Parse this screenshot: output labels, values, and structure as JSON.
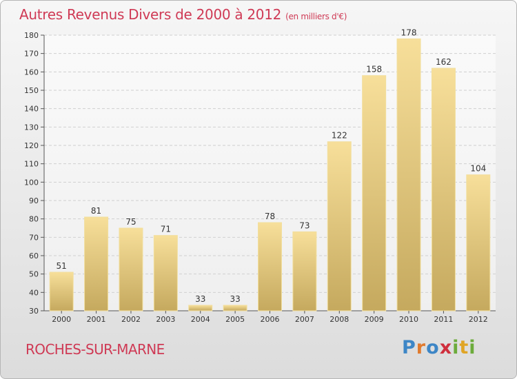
{
  "header": {
    "title": "Autres Revenus Divers de 2000 à 2012",
    "unit": "(en milliers d'€)"
  },
  "footer": {
    "place": "ROCHES-SUR-MARNE",
    "logo_letters": [
      {
        "char": "P",
        "color": "#3d86c6"
      },
      {
        "char": "r",
        "color": "#e07a2e"
      },
      {
        "char": "o",
        "color": "#3d86c6"
      },
      {
        "char": "x",
        "color": "#cf2f3d"
      },
      {
        "char": "i",
        "color": "#6cab3b"
      },
      {
        "char": "t",
        "color": "#e0a526"
      },
      {
        "char": "i",
        "color": "#6cab3b"
      }
    ]
  },
  "chart_data": {
    "type": "bar",
    "categories": [
      "2000",
      "2001",
      "2002",
      "2003",
      "2004",
      "2005",
      "2006",
      "2007",
      "2008",
      "2009",
      "2010",
      "2011",
      "2012"
    ],
    "values": [
      51,
      81,
      75,
      71,
      33,
      33,
      78,
      73,
      122,
      158,
      178,
      162,
      104
    ],
    "ylim": [
      30,
      180
    ],
    "yticks": [
      30,
      40,
      50,
      60,
      70,
      80,
      90,
      100,
      110,
      120,
      130,
      140,
      150,
      160,
      170,
      180
    ],
    "grid": true,
    "bar_color": "#dcc07a",
    "title": "Autres Revenus Divers de 2000 à 2012",
    "xlabel": "",
    "ylabel": ""
  }
}
